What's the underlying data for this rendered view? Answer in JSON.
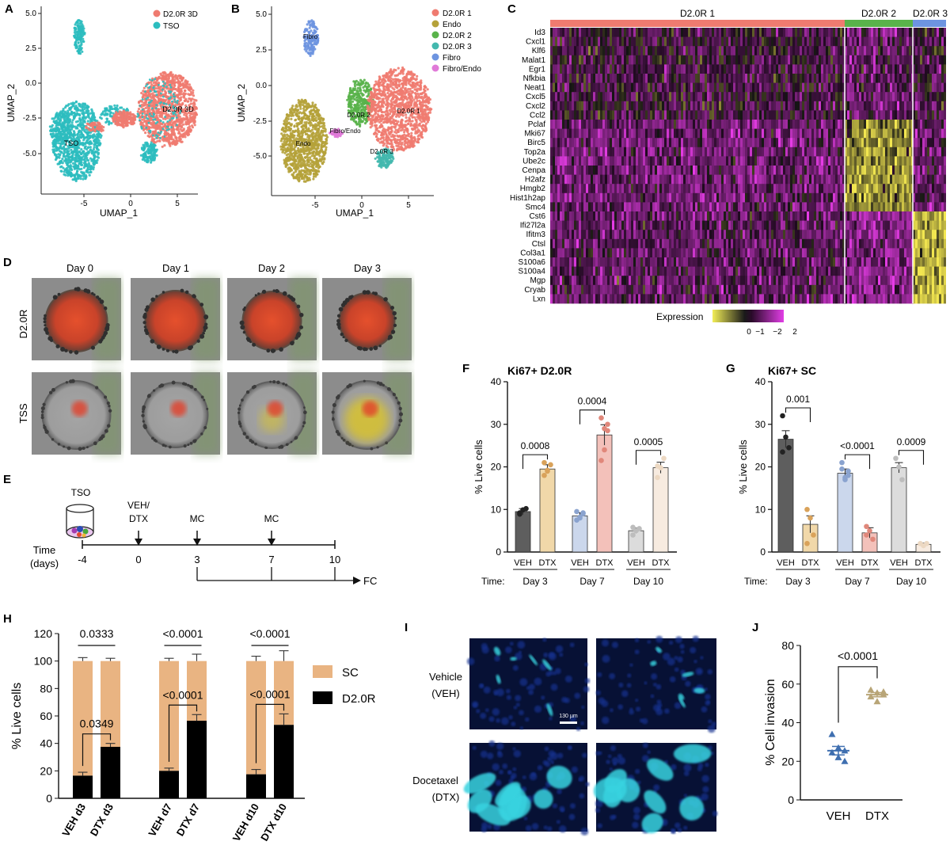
{
  "panels": {
    "A": {
      "letter": "A",
      "xlabel": "UMAP_1",
      "ylabel": "UMAP_2",
      "xticks": [
        "-5",
        "0",
        "5"
      ],
      "yticks": [
        "5.0",
        "2.5",
        "0.0",
        "-2.5",
        "-5.0"
      ],
      "legend": [
        {
          "label": "D2.0R 3D",
          "color": "#ef7b70"
        },
        {
          "label": "TSO",
          "color": "#2cbdbf"
        }
      ],
      "cluster_labels": [
        "D2.0R 3D",
        "TSO"
      ]
    },
    "B": {
      "letter": "B",
      "xlabel": "UMAP_1",
      "ylabel": "UMAP_2",
      "xticks": [
        "-5",
        "0",
        "5"
      ],
      "yticks": [
        "5.0",
        "2.5",
        "0.0",
        "-2.5",
        "-5.0"
      ],
      "legend": [
        {
          "label": "D2.0R 1",
          "color": "#ef7b70"
        },
        {
          "label": "Endo",
          "color": "#b5a23a"
        },
        {
          "label": "D2.0R 2",
          "color": "#59b34a"
        },
        {
          "label": "D2.0R 3",
          "color": "#43b8ae"
        },
        {
          "label": "Fibro",
          "color": "#6d94e0"
        },
        {
          "label": "Fibro/Endo",
          "color": "#e07ad8"
        }
      ],
      "cluster_labels": [
        "Fibro",
        "D2.0R 2",
        "D2.0R 1",
        "Fibro/Endo",
        "Endo",
        "D2.0R 3"
      ]
    },
    "C": {
      "letter": "C",
      "groups": [
        {
          "label": "D2.0R 1",
          "color": "#ef7b70"
        },
        {
          "label": "D2.0R 2",
          "color": "#59b34a"
        },
        {
          "label": "D2.0R 3",
          "color": "#6d94e0"
        }
      ],
      "genes": [
        "Id3",
        "Cxcl1",
        "Klf6",
        "Malat1",
        "Egr1",
        "Nfkbia",
        "Neat1",
        "Cxcl5",
        "Cxcl2",
        "Ccl2",
        "Pclaf",
        "Mki67",
        "Birc5",
        "Top2a",
        "Ube2c",
        "Cenpa",
        "H2afz",
        "Hmgb2",
        "Hist1h2ap",
        "Smc4",
        "Cst6",
        "Ifi27l2a",
        "Ifitm3",
        "Ctsl",
        "Col3a1",
        "S100a6",
        "S100a4",
        "Mgp",
        "Cryab",
        "Lxn"
      ],
      "colorbar_label": "Expression",
      "colorbar_ticks": [
        "0",
        "−1",
        "−2",
        "2"
      ]
    },
    "D": {
      "letter": "D",
      "columns": [
        "Day 0",
        "Day 1",
        "Day 2",
        "Day 3"
      ],
      "rows": [
        "D2.0R",
        "TSS"
      ]
    },
    "E": {
      "letter": "E",
      "tso_label": "TSO",
      "time_label": "Time",
      "days_label": "(days)",
      "ticks": [
        "-4",
        "0",
        "3",
        "7",
        "10"
      ],
      "event_labels": [
        "VEH/",
        "DTX",
        "MC",
        "MC"
      ],
      "fc_label": "FC"
    },
    "F": {
      "letter": "F"
    },
    "G": {
      "letter": "G"
    },
    "H": {
      "letter": "H"
    },
    "I": {
      "letter": "I",
      "rows": [
        "Vehicle",
        "(VEH)",
        "Docetaxel",
        "(DTX)"
      ],
      "scale_bar": "130 µm"
    },
    "J": {
      "letter": "J"
    }
  },
  "chart_data": [
    {
      "id": "F",
      "type": "bar",
      "title": "Ki67+ D2.0R",
      "ylabel": "% Live cells",
      "ylim": [
        0,
        40
      ],
      "yticks": [
        0,
        10,
        20,
        30,
        40
      ],
      "time_label": "Time:",
      "groups": [
        "Day 3",
        "Day 7",
        "Day 10"
      ],
      "bar_labels": [
        "VEH",
        "DTX"
      ],
      "values": [
        [
          9.5,
          19.5
        ],
        [
          8.5,
          27.5
        ],
        [
          5.0,
          19.8
        ]
      ],
      "errors": [
        [
          0.7,
          1.0
        ],
        [
          0.7,
          2.4
        ],
        [
          0.6,
          1.3
        ]
      ],
      "points": [
        [
          [
            9.2,
            9.9,
            10.2,
            8.9
          ],
          [
            18.0,
            19.2,
            20.5,
            21.0,
            19.0
          ]
        ],
        [
          [
            7.5,
            8.2,
            9.0,
            9.5,
            8.0,
            9.2
          ],
          [
            21.5,
            24.0,
            30.0,
            31.5,
            29.0,
            28.5
          ]
        ],
        [
          [
            4.0,
            5.0,
            5.5,
            5.8
          ],
          [
            17.5,
            19.8,
            22.0,
            20.2
          ]
        ]
      ],
      "pvalues": [
        "0.0008",
        "0.0004",
        "0.0005"
      ],
      "bar_colors": [
        [
          "#5e5e5e",
          "#f1d8a9"
        ],
        [
          "#cbd7ec",
          "#f3c1ba"
        ],
        [
          "#dcdcdc",
          "#f7ebe0"
        ]
      ],
      "point_colors": [
        [
          "#222222",
          "#d9a25a"
        ],
        [
          "#8aa3cf",
          "#e0877a"
        ],
        [
          "#bdbdbd",
          "#ecd8c2"
        ]
      ]
    },
    {
      "id": "G",
      "type": "bar",
      "title": "Ki67+ SC",
      "ylabel": "% Live cells",
      "ylim": [
        0,
        40
      ],
      "yticks": [
        0,
        10,
        20,
        30,
        40
      ],
      "time_label": "Time:",
      "groups": [
        "Day 3",
        "Day 7",
        "Day 10"
      ],
      "bar_labels": [
        "VEH",
        "DTX"
      ],
      "values": [
        [
          26.5,
          6.5
        ],
        [
          18.5,
          4.5
        ],
        [
          19.8,
          1.8
        ]
      ],
      "errors": [
        [
          2.0,
          2.0
        ],
        [
          1.0,
          1.2
        ],
        [
          1.2,
          0.3
        ]
      ],
      "points": [
        [
          [
            32.0,
            27.0,
            24.5,
            23.5
          ],
          [
            10.0,
            8.0,
            4.0,
            2.0
          ]
        ],
        [
          [
            19.5,
            17.0,
            18.0,
            21.0,
            17.5,
            19.0
          ],
          [
            6.0,
            5.0,
            3.0,
            4.0
          ]
        ],
        [
          [
            22.0,
            20.0,
            17.0
          ],
          [
            2.0,
            1.5,
            2.0
          ]
        ]
      ],
      "pvalues": [
        "0.001",
        "<0.0001",
        "0.0009"
      ],
      "bar_colors": [
        [
          "#5e5e5e",
          "#f1d8a9"
        ],
        [
          "#cbd7ec",
          "#f3c1ba"
        ],
        [
          "#dcdcdc",
          "#f7ebe0"
        ]
      ],
      "point_colors": [
        [
          "#222222",
          "#d9a25a"
        ],
        [
          "#8aa3cf",
          "#e0877a"
        ],
        [
          "#bdbdbd",
          "#ecd8c2"
        ]
      ]
    },
    {
      "id": "H",
      "type": "bar",
      "ylabel": "% Live cells",
      "ylim": [
        0,
        120
      ],
      "yticks": [
        0,
        20,
        40,
        60,
        80,
        100,
        120
      ],
      "categories": [
        "VEH d3",
        "DTX d3",
        "VEH d7",
        "DTX d7",
        "VEH d10",
        "DTX d10"
      ],
      "series": [
        {
          "name": "D2.0R",
          "color": "#000000",
          "values": [
            16.5,
            37.5,
            20.0,
            56.5,
            17.5,
            53.5
          ],
          "errors": [
            2.5,
            2.5,
            2.0,
            4.5,
            3.5,
            8.0
          ]
        },
        {
          "name": "SC",
          "color": "#e9b482",
          "values": [
            83.5,
            62.5,
            80.0,
            43.5,
            82.5,
            46.5
          ],
          "errors": [
            2.5,
            2.0,
            2.0,
            5.0,
            3.5,
            7.5
          ]
        }
      ],
      "top_pvalues": [
        "0.0333",
        "<0.0001",
        "<0.0001"
      ],
      "inner_pvalues": [
        "0.0349",
        "<0.0001",
        "<0.0001"
      ]
    },
    {
      "id": "J",
      "type": "scatter",
      "ylabel": "% Cell invasion",
      "ylim": [
        0,
        80
      ],
      "yticks": [
        0,
        20,
        40,
        60,
        80
      ],
      "categories": [
        "VEH",
        "DTX"
      ],
      "values": [
        [
          34.0,
          27.0,
          25.5,
          24.5,
          22.0,
          20.0
        ],
        [
          57.0,
          55.5,
          54.5,
          53.5,
          51.0,
          56.0
        ]
      ],
      "means": [
        25.5,
        54.5
      ],
      "errors": [
        2.2,
        1.1
      ],
      "colors": [
        "#3f6fb0",
        "#b8a577"
      ],
      "pvalue": "<0.0001"
    }
  ]
}
